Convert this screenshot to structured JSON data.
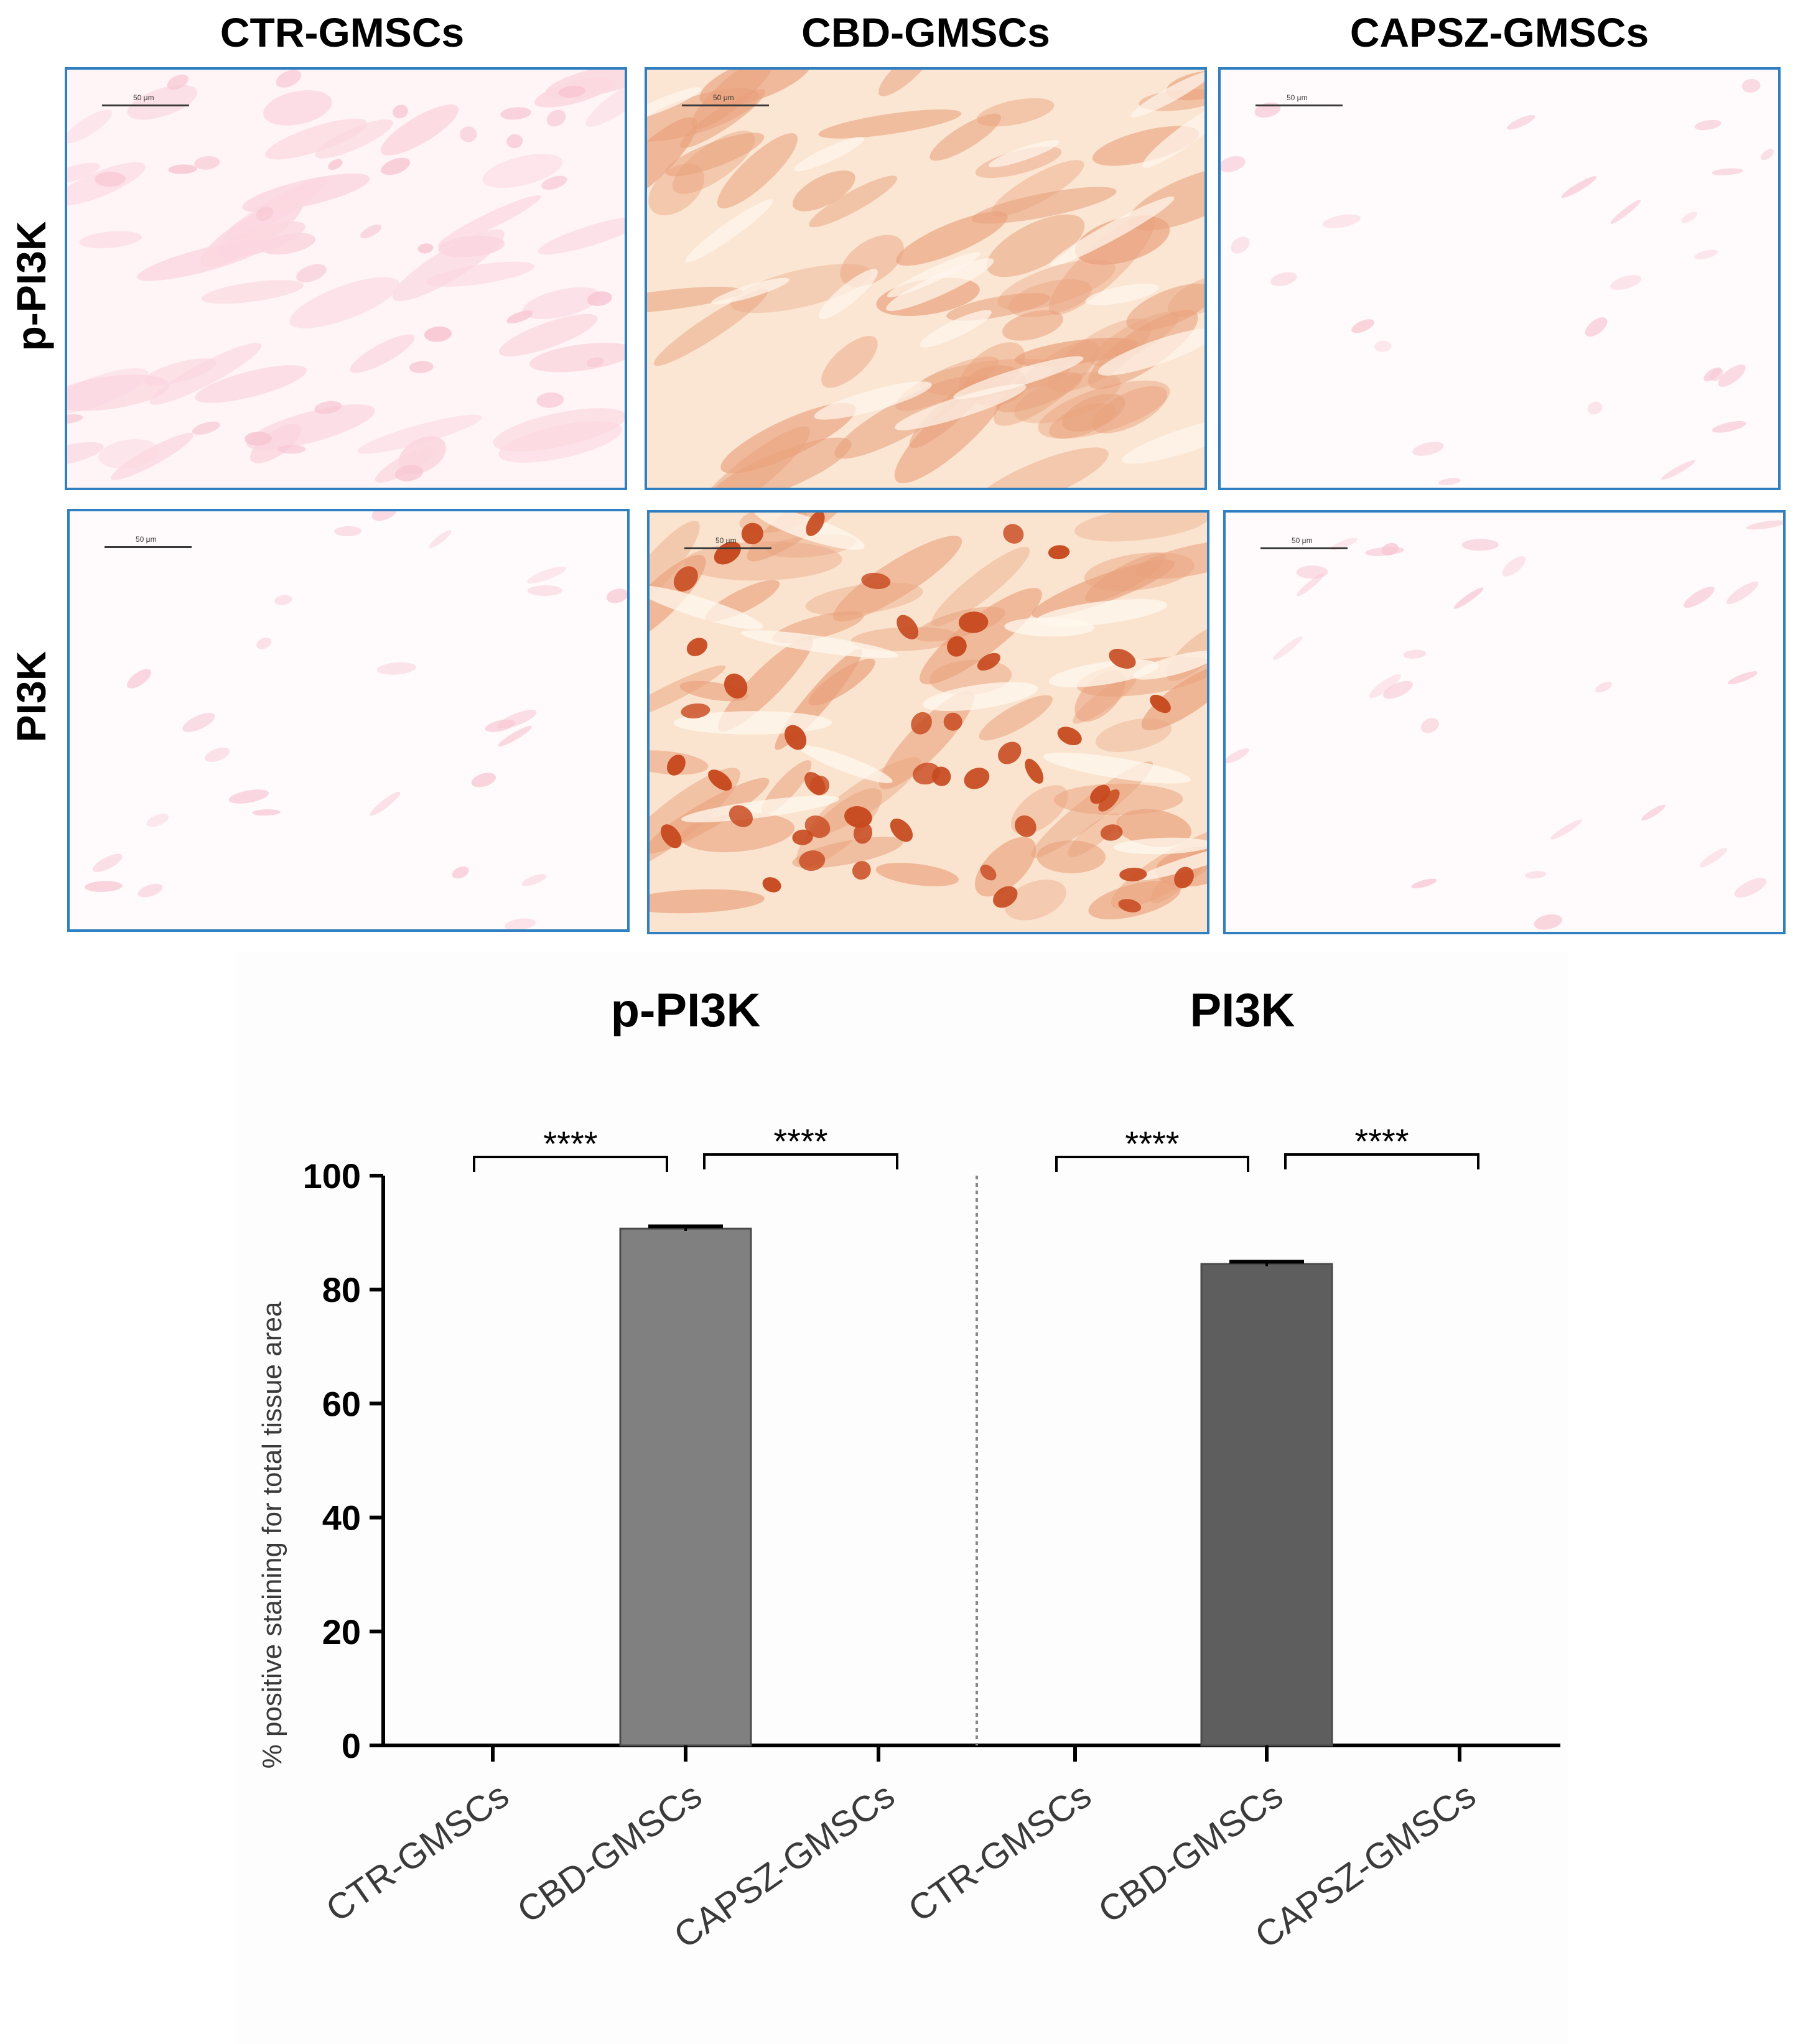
{
  "figure": {
    "columns": [
      "CTR-GMSCs",
      "CBD-GMSCs",
      "CAPSZ-GMSCs"
    ],
    "rows": [
      "p-PI3K",
      "PI3K"
    ],
    "scalebar_label": "50 μm",
    "stain_colors": {
      "pale_pink": "#f7c6d3",
      "light_orange_bg": "#f7dcc6",
      "orange_cell": "#e9a17c",
      "dark_nucleus": "#c74a20",
      "panel_border": "#2f7fc1"
    }
  },
  "chart_data": {
    "type": "bar",
    "ylabel": "% positive staining for total tissue area",
    "ylim": [
      0,
      100
    ],
    "yticks": [
      0,
      20,
      40,
      60,
      80,
      100
    ],
    "grid": false,
    "groups": [
      {
        "name": "p-PI3K",
        "categories": [
          "CTR-GMSCs",
          "CBD-GMSCs",
          "CAPSZ-GMSCs"
        ],
        "values": [
          0,
          90.7,
          0
        ],
        "errors": [
          0,
          0.4,
          0
        ],
        "color": "#808080",
        "significance": [
          {
            "from": "CTR-GMSCs",
            "to": "CBD-GMSCs",
            "label": "****"
          },
          {
            "from": "CBD-GMSCs",
            "to": "CAPSZ-GMSCs",
            "label": "****"
          }
        ]
      },
      {
        "name": "PI3K",
        "categories": [
          "CTR-GMSCs",
          "CBD-GMSCs",
          "CAPSZ-GMSCs"
        ],
        "values": [
          0,
          84.5,
          0
        ],
        "errors": [
          0,
          0.4,
          0
        ],
        "color": "#5e5e5e",
        "significance": [
          {
            "from": "CTR-GMSCs",
            "to": "CBD-GMSCs",
            "label": "****"
          },
          {
            "from": "CBD-GMSCs",
            "to": "CAPSZ-GMSCs",
            "label": "****"
          }
        ]
      }
    ]
  }
}
